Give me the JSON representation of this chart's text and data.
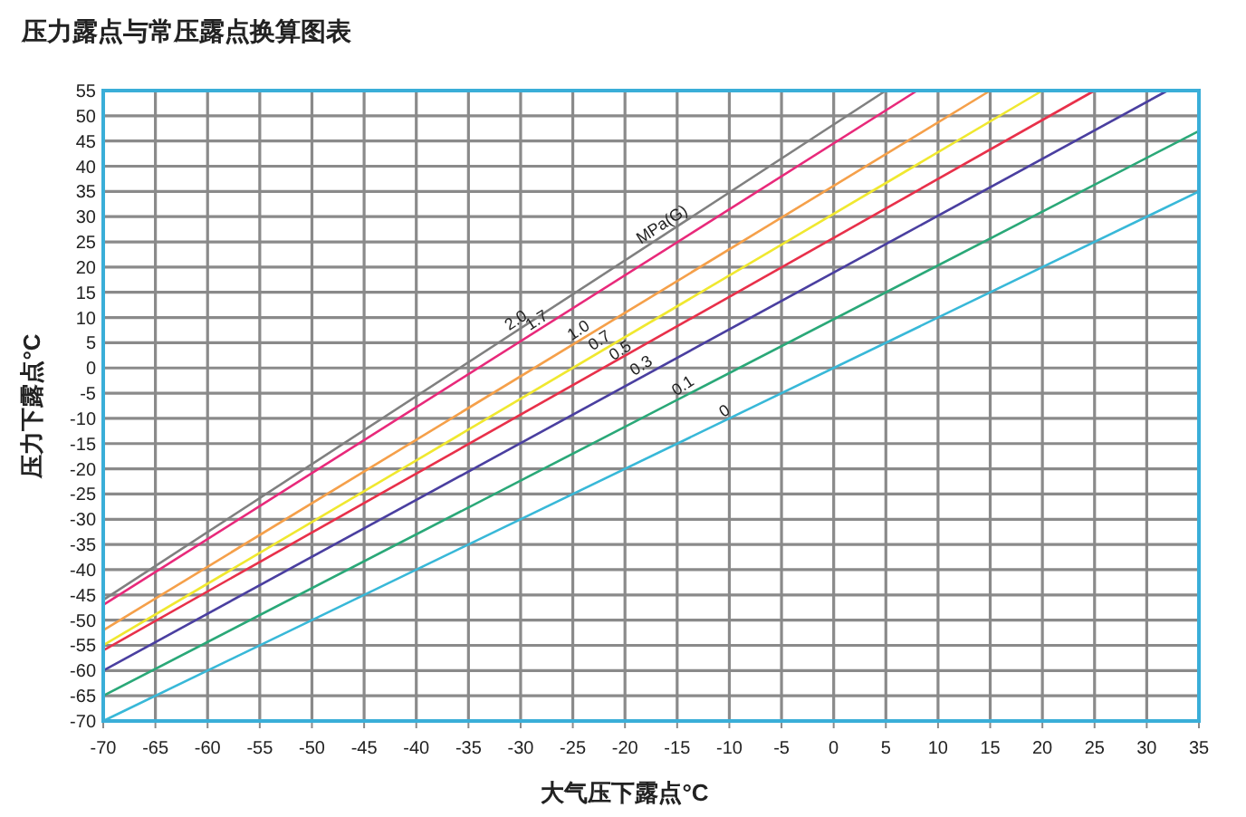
{
  "chart_data": {
    "type": "line",
    "title": "压力露点与常压露点换算图表",
    "xlabel": "大气压下露点°C",
    "ylabel": "压力下露点°C",
    "xlim": [
      -70,
      35
    ],
    "ylim": [
      -70,
      55
    ],
    "xticks": [
      -70,
      -65,
      -60,
      -55,
      -50,
      -45,
      -40,
      -35,
      -30,
      -25,
      -20,
      -15,
      -10,
      -5,
      0,
      5,
      10,
      15,
      20,
      25,
      30,
      35
    ],
    "yticks": [
      -70,
      -65,
      -60,
      -55,
      -50,
      -45,
      -40,
      -35,
      -30,
      -25,
      -20,
      -15,
      -10,
      -5,
      0,
      5,
      10,
      15,
      20,
      25,
      30,
      35,
      40,
      45,
      50,
      55
    ],
    "grid": true,
    "marker": "none",
    "line_style": "solid",
    "series": [
      {
        "color": "#808080",
        "x": [
          -70,
          5
        ],
        "values": [
          -46,
          55
        ]
      },
      {
        "color": "#e8297a",
        "x": [
          -70,
          8
        ],
        "values": [
          -47,
          55
        ]
      },
      {
        "color": "#f5a04a",
        "x": [
          -70,
          15
        ],
        "values": [
          -52,
          55
        ]
      },
      {
        "color": "#f0e830",
        "x": [
          -70,
          20
        ],
        "values": [
          -55,
          55
        ]
      },
      {
        "color": "#e8304a",
        "x": [
          -70,
          25
        ],
        "values": [
          -56,
          55
        ]
      },
      {
        "color": "#4a3fa0",
        "x": [
          -70,
          32
        ],
        "values": [
          -60,
          55
        ]
      },
      {
        "color": "#2aa878",
        "x": [
          -70,
          35
        ],
        "values": [
          -65,
          47
        ]
      },
      {
        "color": "#38b8d8",
        "x": [
          -70,
          35
        ],
        "values": [
          -70,
          35
        ]
      }
    ],
    "annotations": [
      {
        "text": "2.0",
        "x": -30,
        "y": 8
      },
      {
        "text": "1.7",
        "x": -28,
        "y": 8
      },
      {
        "text": "1.0",
        "x": -24,
        "y": 6
      },
      {
        "text": "0.7",
        "x": -22,
        "y": 4
      },
      {
        "text": "0.5",
        "x": -20,
        "y": 2
      },
      {
        "text": "0.3",
        "x": -18,
        "y": -1
      },
      {
        "text": "0.1",
        "x": -14,
        "y": -5
      },
      {
        "text": "0",
        "x": -10,
        "y": -10
      },
      {
        "text": "MPa(G)",
        "x": -16,
        "y": 27
      }
    ]
  }
}
